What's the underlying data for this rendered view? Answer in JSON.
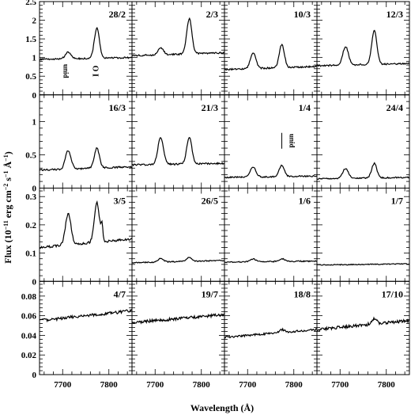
{
  "chart_data": {
    "type": "line",
    "xlabel": "Wavelength (Å)",
    "ylabel_main": "Flux (10",
    "ylabel_exp": "−11",
    "ylabel_rest": " erg cm",
    "ylabel_exp2": "−2",
    "ylabel_s": " s",
    "ylabel_exp3": "−1",
    "ylabel_a": " Å",
    "ylabel_exp4": "−1",
    "ylabel_end": ")",
    "xlim": [
      7650,
      7850
    ],
    "xticks": [
      7700,
      7800
    ],
    "xtick_labels": [
      "7700",
      "7800"
    ],
    "lines": {
      "unid": 7712,
      "OI": 7774
    },
    "rows": [
      {
        "ylim": [
          0,
          2.5
        ],
        "yticks": [
          0,
          0.5,
          1,
          1.5,
          2,
          2.5
        ],
        "ytick_labels": [
          "0",
          "0.5",
          "1",
          "1.5",
          "2",
          "2.5"
        ],
        "panels": [
          {
            "date": "28/2",
            "base": 0.95,
            "slope": 0.05,
            "amp_unid": 0.18,
            "amp_oi": 0.8,
            "amp_3": 0,
            "noise": 0.02,
            "labels": [
              "unid",
              "O I"
            ]
          },
          {
            "date": "2/3",
            "base": 1.05,
            "slope": 0.08,
            "amp_unid": 0.18,
            "amp_oi": 0.95,
            "amp_3": 0,
            "noise": 0.02,
            "labels": []
          },
          {
            "date": "10/3",
            "base": 0.68,
            "slope": 0.08,
            "amp_unid": 0.42,
            "amp_oi": 0.62,
            "amp_3": 0,
            "noise": 0.02,
            "labels": []
          },
          {
            "date": "12/3",
            "base": 0.78,
            "slope": 0.06,
            "amp_unid": 0.5,
            "amp_oi": 0.9,
            "amp_3": 0,
            "noise": 0.02,
            "labels": []
          }
        ]
      },
      {
        "ylim": [
          0,
          1.4
        ],
        "yticks": [
          0,
          0.5,
          1
        ],
        "ytick_labels": [
          "0",
          "0.5",
          "1"
        ],
        "panels": [
          {
            "date": "16/3",
            "base": 0.27,
            "slope": 0.05,
            "amp_unid": 0.28,
            "amp_oi": 0.3,
            "amp_3": 0,
            "noise": 0.012,
            "labels": []
          },
          {
            "date": "21/3",
            "base": 0.35,
            "slope": 0.02,
            "amp_unid": 0.4,
            "amp_oi": 0.4,
            "amp_3": 0,
            "noise": 0.012,
            "labels": []
          },
          {
            "date": "1/4",
            "base": 0.16,
            "slope": 0.02,
            "amp_unid": 0.15,
            "amp_oi": 0.17,
            "amp_3": 0,
            "noise": 0.01,
            "labels": [
              "unid"
            ]
          },
          {
            "date": "24/4",
            "base": 0.14,
            "slope": 0.02,
            "amp_unid": 0.15,
            "amp_oi": 0.22,
            "amp_3": 0,
            "noise": 0.01,
            "labels": []
          }
        ]
      },
      {
        "ylim": [
          0,
          0.33
        ],
        "yticks": [
          0,
          0.1,
          0.2,
          0.3
        ],
        "ytick_labels": [
          "0",
          "0.1",
          "0.2",
          "0.3"
        ],
        "panels": [
          {
            "date": "3/5",
            "base": 0.12,
            "slope": 0.03,
            "amp_unid": 0.11,
            "amp_oi": 0.14,
            "amp_3": 0.05,
            "noise": 0.004,
            "labels": []
          },
          {
            "date": "26/5",
            "base": 0.066,
            "slope": 0.008,
            "amp_unid": 0.012,
            "amp_oi": 0.015,
            "amp_3": 0,
            "noise": 0.002,
            "labels": []
          },
          {
            "date": "1/6",
            "base": 0.068,
            "slope": 0.004,
            "amp_unid": 0.01,
            "amp_oi": 0.01,
            "amp_3": 0,
            "noise": 0.002,
            "labels": []
          },
          {
            "date": "1/7",
            "base": 0.058,
            "slope": 0.004,
            "amp_unid": 0.0,
            "amp_oi": 0.0,
            "amp_3": 0,
            "noise": 0.0015,
            "labels": []
          }
        ]
      },
      {
        "ylim": [
          0,
          0.095
        ],
        "yticks": [
          0,
          0.02,
          0.04,
          0.06,
          0.08
        ],
        "ytick_labels": [
          "0",
          "0.02",
          "0.04",
          "0.06",
          "0.08"
        ],
        "panels": [
          {
            "date": "4/7",
            "base": 0.055,
            "slope": 0.01,
            "amp_unid": 0.0,
            "amp_oi": 0.0,
            "amp_3": 0,
            "noise": 0.0015,
            "labels": []
          },
          {
            "date": "19/7",
            "base": 0.053,
            "slope": 0.008,
            "amp_unid": 0.0,
            "amp_oi": 0.0,
            "amp_3": 0,
            "noise": 0.0015,
            "labels": []
          },
          {
            "date": "18/8",
            "base": 0.038,
            "slope": 0.008,
            "amp_unid": 0.0,
            "amp_oi": 0.003,
            "amp_3": 0,
            "noise": 0.001,
            "labels": []
          },
          {
            "date": "17/10",
            "base": 0.046,
            "slope": 0.009,
            "amp_unid": 0.0,
            "amp_oi": 0.005,
            "amp_3": 0,
            "noise": 0.0015,
            "labels": []
          }
        ]
      }
    ]
  }
}
